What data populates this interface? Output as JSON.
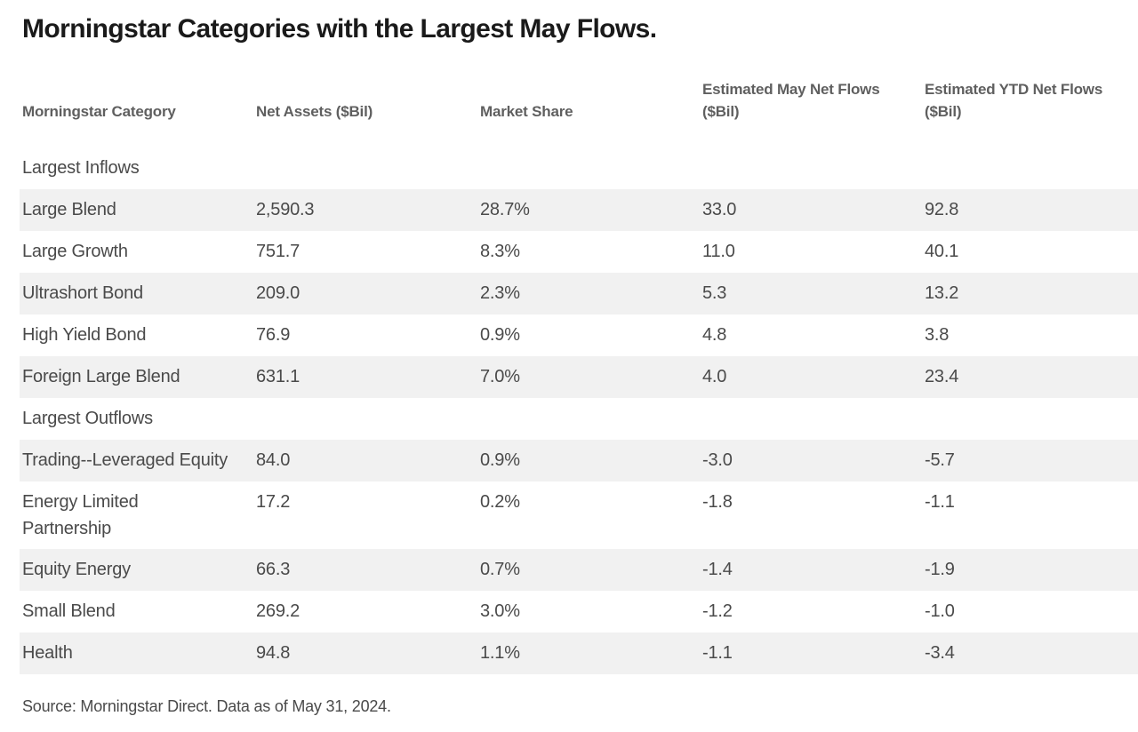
{
  "title": "Morningstar Categories with the Largest May Flows.",
  "source_note": "Source: Morningstar Direct. Data as of May 31, 2024.",
  "colors": {
    "title_text": "#1a1a1a",
    "header_text": "#5f5f5f",
    "body_text": "#4a4a4a",
    "row_stripe": "#f1f1f1",
    "background": "#ffffff"
  },
  "table": {
    "columns": [
      "Morningstar Category",
      "Net Assets ($Bil)",
      "Market Share",
      "Estimated May Net Flows ($Bil)",
      "Estimated YTD Net Flows ($Bil)"
    ],
    "sections": [
      {
        "label": "Largest Inflows",
        "rows": [
          [
            "Large Blend",
            "2,590.3",
            "28.7%",
            "33.0",
            "92.8"
          ],
          [
            "Large Growth",
            "751.7",
            "8.3%",
            "11.0",
            "40.1"
          ],
          [
            "Ultrashort Bond",
            "209.0",
            "2.3%",
            "5.3",
            "13.2"
          ],
          [
            "High Yield Bond",
            "76.9",
            "0.9%",
            "4.8",
            "3.8"
          ],
          [
            "Foreign Large Blend",
            "631.1",
            "7.0%",
            "4.0",
            "23.4"
          ]
        ]
      },
      {
        "label": "Largest Outflows",
        "rows": [
          [
            "Trading--Leveraged Equity",
            "84.0",
            "0.9%",
            "-3.0",
            "-5.7"
          ],
          [
            "Energy Limited\nPartnership",
            "17.2",
            "0.2%",
            "-1.8",
            "-1.1"
          ],
          [
            "Equity Energy",
            "66.3",
            "0.7%",
            "-1.4",
            "-1.9"
          ],
          [
            "Small Blend",
            "269.2",
            "3.0%",
            "-1.2",
            "-1.0"
          ],
          [
            "Health",
            "94.8",
            "1.1%",
            "-1.1",
            "-3.4"
          ]
        ]
      }
    ]
  },
  "chart_data": {
    "type": "table",
    "title": "Morningstar Categories with the Largest May Flows.",
    "columns": [
      "Morningstar Category",
      "Net Assets ($Bil)",
      "Market Share",
      "Estimated May Net Flows ($Bil)",
      "Estimated YTD Net Flows ($Bil)"
    ],
    "sections": [
      {
        "name": "Largest Inflows",
        "rows": [
          {
            "category": "Large Blend",
            "net_assets_bil": 2590.3,
            "market_share_pct": 28.7,
            "est_may_net_flows_bil": 33.0,
            "est_ytd_net_flows_bil": 92.8
          },
          {
            "category": "Large Growth",
            "net_assets_bil": 751.7,
            "market_share_pct": 8.3,
            "est_may_net_flows_bil": 11.0,
            "est_ytd_net_flows_bil": 40.1
          },
          {
            "category": "Ultrashort Bond",
            "net_assets_bil": 209.0,
            "market_share_pct": 2.3,
            "est_may_net_flows_bil": 5.3,
            "est_ytd_net_flows_bil": 13.2
          },
          {
            "category": "High Yield Bond",
            "net_assets_bil": 76.9,
            "market_share_pct": 0.9,
            "est_may_net_flows_bil": 4.8,
            "est_ytd_net_flows_bil": 3.8
          },
          {
            "category": "Foreign Large Blend",
            "net_assets_bil": 631.1,
            "market_share_pct": 7.0,
            "est_may_net_flows_bil": 4.0,
            "est_ytd_net_flows_bil": 23.4
          }
        ]
      },
      {
        "name": "Largest Outflows",
        "rows": [
          {
            "category": "Trading--Leveraged Equity",
            "net_assets_bil": 84.0,
            "market_share_pct": 0.9,
            "est_may_net_flows_bil": -3.0,
            "est_ytd_net_flows_bil": -5.7
          },
          {
            "category": "Energy Limited Partnership",
            "net_assets_bil": 17.2,
            "market_share_pct": 0.2,
            "est_may_net_flows_bil": -1.8,
            "est_ytd_net_flows_bil": -1.1
          },
          {
            "category": "Equity Energy",
            "net_assets_bil": 66.3,
            "market_share_pct": 0.7,
            "est_may_net_flows_bil": -1.4,
            "est_ytd_net_flows_bil": -1.9
          },
          {
            "category": "Small Blend",
            "net_assets_bil": 269.2,
            "market_share_pct": 3.0,
            "est_may_net_flows_bil": -1.2,
            "est_ytd_net_flows_bil": -1.0
          },
          {
            "category": "Health",
            "net_assets_bil": 94.8,
            "market_share_pct": 1.1,
            "est_may_net_flows_bil": -1.1,
            "est_ytd_net_flows_bil": -3.4
          }
        ]
      }
    ],
    "source": "Source: Morningstar Direct. Data as of May 31, 2024."
  }
}
